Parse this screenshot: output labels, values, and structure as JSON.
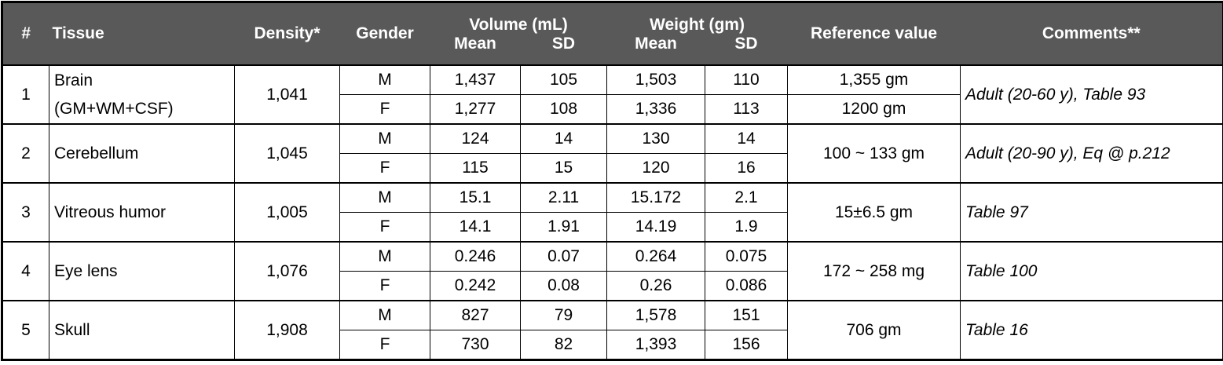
{
  "table": {
    "header": {
      "number": "#",
      "tissue": "Tissue",
      "density": "Density*",
      "gender": "Gender",
      "volume": "Volume (mL)",
      "weight": "Weight (gm)",
      "mean": "Mean",
      "sd": "SD",
      "reference": "Reference value",
      "comments": "Comments**"
    },
    "rows": [
      {
        "number": "1",
        "tissue": "Brain\n(GM+WM+CSF)",
        "density": "1,041",
        "subrows": [
          {
            "gender": "M",
            "volume_mean": "1,437",
            "volume_sd": "105",
            "weight_mean": "1,503",
            "weight_sd": "110"
          },
          {
            "gender": "F",
            "volume_mean": "1,277",
            "volume_sd": "108",
            "weight_mean": "1,336",
            "weight_sd": "113"
          }
        ],
        "reference": [
          "1,355 gm",
          "1200 gm"
        ],
        "comment": "Adult (20-60 y), Table 93"
      },
      {
        "number": "2",
        "tissue": "Cerebellum",
        "density": "1,045",
        "subrows": [
          {
            "gender": "M",
            "volume_mean": "124",
            "volume_sd": "14",
            "weight_mean": "130",
            "weight_sd": "14"
          },
          {
            "gender": "F",
            "volume_mean": "115",
            "volume_sd": "15",
            "weight_mean": "120",
            "weight_sd": "16"
          }
        ],
        "reference": [
          "100 ~ 133 gm"
        ],
        "comment": "Adult (20-90 y), Eq @ p.212"
      },
      {
        "number": "3",
        "tissue": "Vitreous humor",
        "density": "1,005",
        "subrows": [
          {
            "gender": "M",
            "volume_mean": "15.1",
            "volume_sd": "2.11",
            "weight_mean": "15.172",
            "weight_sd": "2.1"
          },
          {
            "gender": "F",
            "volume_mean": "14.1",
            "volume_sd": "1.91",
            "weight_mean": "14.19",
            "weight_sd": "1.9"
          }
        ],
        "reference": [
          "15±6.5 gm"
        ],
        "comment": "Table 97"
      },
      {
        "number": "4",
        "tissue": "Eye lens",
        "density": "1,076",
        "subrows": [
          {
            "gender": "M",
            "volume_mean": "0.246",
            "volume_sd": "0.07",
            "weight_mean": "0.264",
            "weight_sd": "0.075"
          },
          {
            "gender": "F",
            "volume_mean": "0.242",
            "volume_sd": "0.08",
            "weight_mean": "0.26",
            "weight_sd": "0.086"
          }
        ],
        "reference": [
          "172 ~ 258 mg"
        ],
        "comment": "Table 100"
      },
      {
        "number": "5",
        "tissue": "Skull",
        "density": "1,908",
        "subrows": [
          {
            "gender": "M",
            "volume_mean": "827",
            "volume_sd": "79",
            "weight_mean": "1,578",
            "weight_sd": "151"
          },
          {
            "gender": "F",
            "volume_mean": "730",
            "volume_sd": "82",
            "weight_mean": "1,393",
            "weight_sd": "156"
          }
        ],
        "reference": [
          "706 gm"
        ],
        "comment": "Table 16"
      }
    ]
  }
}
